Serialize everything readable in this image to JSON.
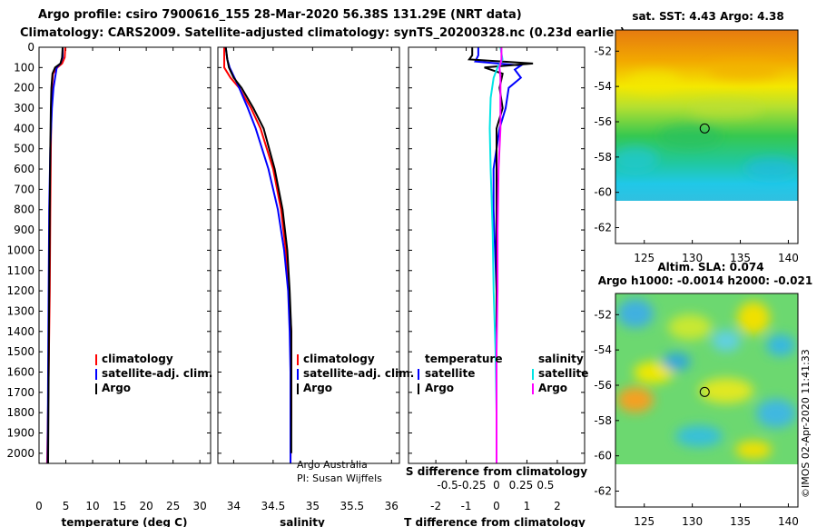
{
  "header": {
    "title_line1": "Argo profile: csiro 7900616_155 28-Mar-2020 56.38S 131.29E (NRT data)",
    "title_line2": "Climatology: CARS2009. Satellite-adjusted climatology: synTS_20200328.nc (0.23d earlier)"
  },
  "colors": {
    "climatology": "#ff0000",
    "satellite": "#0000ff",
    "argo": "#000000",
    "s_satellite": "#00e5e5",
    "s_argo": "#ff00ff"
  },
  "chart_data": [
    {
      "type": "line",
      "title": "",
      "xlabel": "temperature (deg C)",
      "ylabel": "",
      "xlim": [
        0,
        32
      ],
      "ylim": [
        2050,
        0
      ],
      "x_ticks": [
        0,
        5,
        10,
        15,
        20,
        25,
        30
      ],
      "y_ticks": [
        0,
        100,
        200,
        300,
        400,
        500,
        600,
        700,
        800,
        900,
        1000,
        1100,
        1200,
        1300,
        1400,
        1500,
        1600,
        1700,
        1800,
        1900,
        2000
      ],
      "legend": [
        "climatology",
        "satellite-adj. clim.",
        "Argo"
      ],
      "series": [
        {
          "name": "climatology",
          "color": "#ff0000",
          "depth": [
            0,
            50,
            80,
            100,
            130,
            200,
            300,
            500,
            800,
            1200,
            1600,
            2050
          ],
          "values": [
            4.9,
            4.8,
            4.3,
            3.4,
            2.6,
            2.4,
            2.3,
            2.2,
            2.1,
            2.0,
            1.8,
            1.5
          ]
        },
        {
          "name": "satellite-adj. clim.",
          "color": "#0000ff",
          "depth": [
            0,
            50,
            80,
            100,
            150,
            200,
            300,
            500,
            800,
            1200,
            1600,
            2050
          ],
          "values": [
            4.4,
            4.4,
            4.0,
            3.3,
            3.0,
            2.7,
            2.4,
            2.1,
            1.9,
            1.8,
            1.7,
            1.6
          ]
        },
        {
          "name": "Argo",
          "color": "#000000",
          "depth": [
            0,
            50,
            80,
            100,
            130,
            200,
            300,
            500,
            800,
            1200,
            1600,
            2050
          ],
          "values": [
            4.4,
            4.3,
            4.0,
            3.0,
            2.5,
            2.3,
            2.2,
            2.1,
            2.0,
            1.9,
            1.8,
            1.7
          ]
        }
      ]
    },
    {
      "type": "line",
      "title": "",
      "xlabel": "salinity",
      "ylabel": "",
      "xlim": [
        33.8,
        36.1
      ],
      "ylim": [
        2050,
        0
      ],
      "x_ticks": [
        34,
        34.5,
        35,
        35.5,
        36
      ],
      "legend": [
        "climatology",
        "satellite-adj. clim.",
        "Argo"
      ],
      "note": [
        "Argo Australia",
        "PI: Susan Wijffels"
      ],
      "series": [
        {
          "name": "climatology",
          "color": "#ff0000",
          "depth": [
            0,
            60,
            100,
            150,
            200,
            300,
            400,
            600,
            800,
            1000,
            1200,
            1400,
            1600,
            1800,
            2050
          ],
          "values": [
            33.88,
            33.88,
            33.88,
            33.96,
            34.07,
            34.22,
            34.34,
            34.5,
            34.6,
            34.66,
            34.7,
            34.73,
            34.73,
            34.73,
            34.72
          ]
        },
        {
          "name": "satellite-adj. clim.",
          "color": "#0000ff",
          "depth": [
            0,
            60,
            100,
            150,
            200,
            300,
            400,
            600,
            800,
            1000,
            1200,
            1400,
            1600,
            1800,
            2050
          ],
          "values": [
            33.9,
            33.92,
            33.95,
            34.01,
            34.07,
            34.18,
            34.28,
            34.44,
            34.56,
            34.64,
            34.69,
            34.71,
            34.72,
            34.72,
            34.72
          ]
        },
        {
          "name": "Argo",
          "color": "#000000",
          "depth": [
            0,
            60,
            100,
            150,
            200,
            300,
            400,
            600,
            800,
            1000,
            1200,
            1400,
            1600,
            1800,
            2000
          ],
          "values": [
            33.9,
            33.92,
            33.94,
            34.0,
            34.1,
            34.25,
            34.38,
            34.52,
            34.62,
            34.68,
            34.71,
            34.73,
            34.73,
            34.73,
            34.73
          ]
        }
      ]
    },
    {
      "type": "line",
      "title": "",
      "xlabel": "T difference from climatology",
      "x2label": "S difference from climatology",
      "xlim": [
        -2.9,
        2.9
      ],
      "x2lim": [
        -0.9,
        0.9
      ],
      "ylim": [
        2050,
        0
      ],
      "x_ticks": [
        -2,
        -1,
        0,
        1,
        2
      ],
      "x_tick_labels": [
        "-2",
        "-1",
        "0",
        "1",
        "2"
      ],
      "x2_ticks": [
        -0.5,
        -0.25,
        0,
        0.25,
        0.5
      ],
      "x2_tick_labels": [
        "-0.5",
        "-0.25",
        "0",
        "0.25",
        "0.5"
      ],
      "legend_temperature_title": "temperature",
      "legend_salinity_title": "salinity",
      "legend_temperature": [
        "satellite",
        "Argo"
      ],
      "legend_salinity": [
        "satellite",
        "Argo"
      ],
      "series": [
        {
          "name": "T satellite",
          "color": "#0000ff",
          "depth": [
            0,
            40,
            70,
            90,
            110,
            150,
            200,
            300,
            400,
            600,
            800,
            1200,
            1600,
            2050
          ],
          "values": [
            -0.6,
            -0.6,
            -0.7,
            0.8,
            0.6,
            0.8,
            0.4,
            0.3,
            0.1,
            -0.1,
            -0.1,
            0.0,
            0.0,
            0.0
          ]
        },
        {
          "name": "T Argo",
          "color": "#000000",
          "depth": [
            0,
            40,
            60,
            80,
            100,
            130,
            200,
            300,
            400,
            600,
            800,
            1200,
            1600,
            2000
          ],
          "values": [
            -0.8,
            -0.8,
            -0.9,
            1.2,
            -0.4,
            0.2,
            0.1,
            0.2,
            0.0,
            0.0,
            0.0,
            0.0,
            0.0,
            0.0
          ]
        },
        {
          "name": "S satellite",
          "color": "#00e5e5",
          "depth": [
            0,
            60,
            100,
            150,
            250,
            400,
            600,
            900,
            1200,
            1500,
            1800,
            2050
          ],
          "values": [
            0.04,
            0.06,
            0.01,
            -0.03,
            -0.06,
            -0.07,
            -0.06,
            -0.04,
            -0.03,
            -0.01,
            0.0,
            0.0
          ]
        },
        {
          "name": "S Argo",
          "color": "#ff00ff",
          "depth": [
            0,
            60,
            100,
            150,
            250,
            400,
            600,
            900,
            1200,
            1500,
            1800,
            2050
          ],
          "values": [
            0.05,
            0.05,
            0.03,
            0.04,
            0.04,
            0.04,
            0.02,
            0.01,
            0.01,
            0.0,
            0.0,
            0.0
          ]
        }
      ]
    },
    {
      "type": "heatmap",
      "title": "sat. SST: 4.43 Argo: 4.38",
      "xlim": [
        122,
        141
      ],
      "ylim": [
        -62.9,
        -50.8
      ],
      "x_ticks": [
        125,
        130,
        135,
        140
      ],
      "y_ticks": [
        -52,
        -54,
        -56,
        -58,
        -60,
        -62
      ],
      "data_bottom_lat": -60,
      "float_position": [
        131.29,
        -56.38
      ]
    },
    {
      "type": "heatmap",
      "title_line1": "Altim. SLA: 0.074",
      "title_line2": "Argo h1000: -0.0014 h2000: -0.021",
      "xlim": [
        122,
        141
      ],
      "ylim": [
        -62.9,
        -50.8
      ],
      "x_ticks": [
        125,
        130,
        135,
        140
      ],
      "y_ticks": [
        -52,
        -54,
        -56,
        -58,
        -60,
        -62
      ],
      "data_bottom_lat": -60,
      "float_position": [
        131.29,
        -56.38
      ]
    }
  ],
  "footer": {
    "stamp": "©IMOS 02-Apr-2020 11:41:33"
  }
}
